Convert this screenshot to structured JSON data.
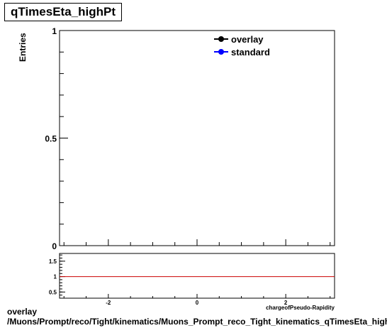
{
  "title": "qTimesEta_highPt",
  "footer": {
    "line1": "overlay",
    "line2": "/Muons/Prompt/reco/Tight/kinematics/Muons_Prompt_reco_Tight_kinematics_qTimesEta_highPt"
  },
  "chart_data": [
    {
      "type": "line",
      "ylabel": "Entries",
      "xlabel": "",
      "xlim": [
        -3.1,
        3.1
      ],
      "ylim": [
        0,
        1
      ],
      "y_ticks": [
        "0",
        "0.5",
        "1"
      ],
      "grid": false,
      "legend_placement": "top-right",
      "series": [
        {
          "name": "overlay",
          "values": [],
          "color": "#000000"
        },
        {
          "name": "standard",
          "values": [],
          "color": "#0000ff"
        }
      ]
    },
    {
      "type": "line",
      "xlabel": "chargeofPseudo-Rapidity",
      "xlim": [
        -3.1,
        3.1
      ],
      "ylim": [
        0.3,
        1.75
      ],
      "x_ticks": [
        "-2",
        "0",
        "2"
      ],
      "y_ticks": [
        "0.5",
        "1",
        "1.5"
      ],
      "reference_line": {
        "y": 1,
        "color": "#cc0000"
      },
      "series": []
    }
  ]
}
